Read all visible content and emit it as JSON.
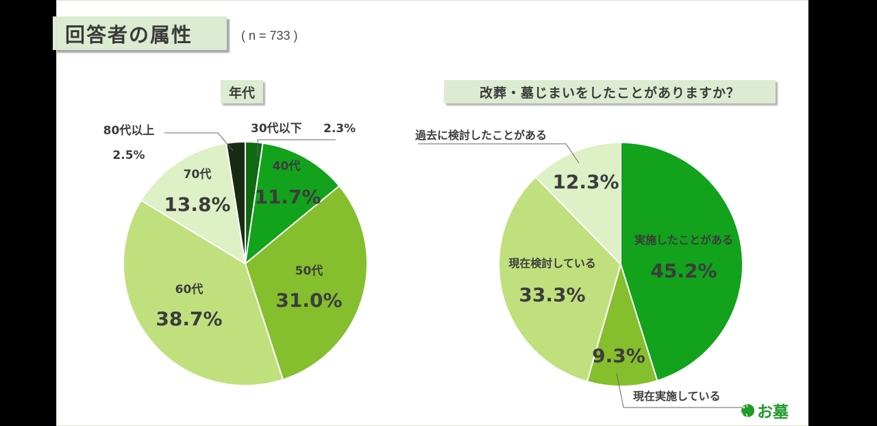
{
  "title": "回答者の属性",
  "sample_size": "( n = 733 )",
  "logo": {
    "mark": "いい",
    "text": "お墓"
  },
  "colors": {
    "accent_bg": "#dcebd1",
    "brand_green": "#1e9a28"
  },
  "chart_data": [
    {
      "type": "pie",
      "title": "年代",
      "slices": [
        {
          "label": "30代以下",
          "value": 2.3,
          "value_label": "2.3%",
          "color": "#0f6b12"
        },
        {
          "label": "40代",
          "value": 11.7,
          "value_label": "11.7%",
          "color": "#12a21c"
        },
        {
          "label": "50代",
          "value": 31.0,
          "value_label": "31.0%",
          "color": "#85bf2d"
        },
        {
          "label": "60代",
          "value": 38.7,
          "value_label": "38.7%",
          "color": "#c0e07e"
        },
        {
          "label": "70代",
          "value": 13.8,
          "value_label": "13.8%",
          "color": "#def0c6"
        },
        {
          "label": "80代以上",
          "value": 2.5,
          "value_label": "2.5%",
          "color": "#182b12"
        }
      ]
    },
    {
      "type": "pie",
      "title": "改葬・墓じまいをしたことがありますか？",
      "slices": [
        {
          "label": "実施したことがある",
          "value": 45.2,
          "value_label": "45.2%",
          "color": "#12a21c"
        },
        {
          "label": "現在実施している",
          "value": 9.3,
          "value_label": "9.3%",
          "color": "#85bf2d"
        },
        {
          "label": "現在検討している",
          "value": 33.3,
          "value_label": "33.3%",
          "color": "#c0e07e"
        },
        {
          "label": "過去に検討したことがある",
          "value": 12.3,
          "value_label": "12.3%",
          "color": "#def0c6"
        }
      ]
    }
  ]
}
